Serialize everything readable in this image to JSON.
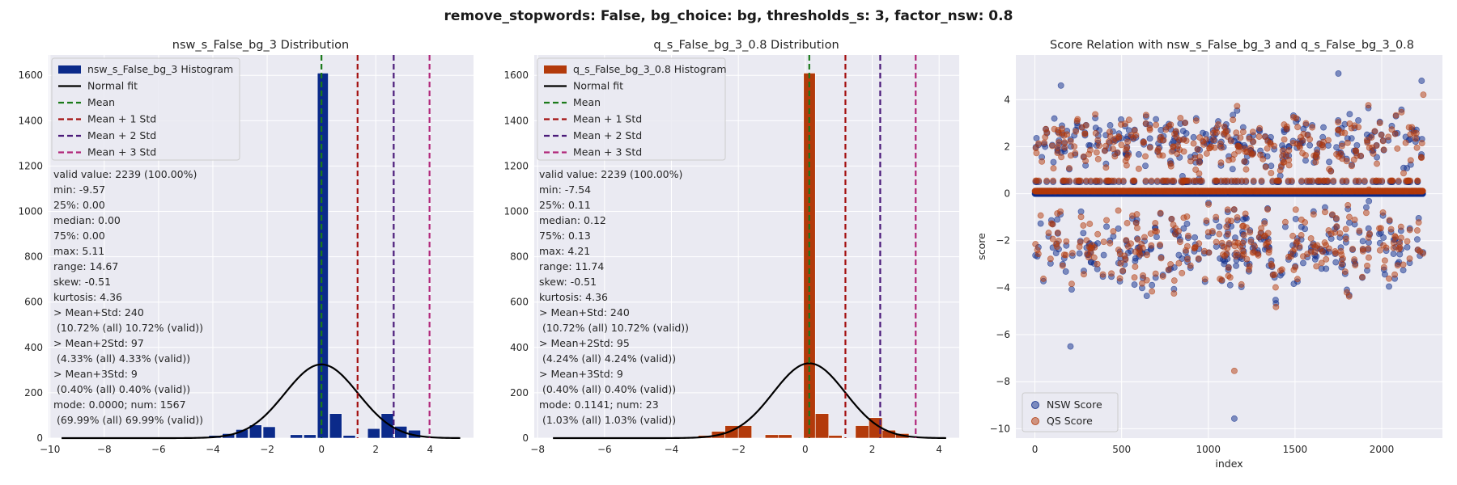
{
  "suptitle": "remove_stopwords: False, bg_choice: bg, thresholds_s: 3, factor_nsw: 0.8",
  "colors": {
    "nsw": "#0b2a8a",
    "qs": "#b33a0b",
    "mean": "#1a7a1a",
    "std1": "#a31010",
    "std2": "#4b1b7a",
    "std3": "#b0267a",
    "fit": "#000000",
    "panel_bg": "#eaeaf2",
    "grid": "#ffffff"
  },
  "legend_labels": {
    "normal_fit": "Normal fit",
    "mean": "Mean",
    "std1": "Mean + 1 Std",
    "std2": "Mean + 2 Std",
    "std3": "Mean + 3 Std"
  },
  "chart_data": [
    {
      "type": "bar",
      "title": "nsw_s_False_bg_3 Distribution",
      "histogram_label": "nsw_s_False_bg_3 Histogram",
      "color_key": "nsw",
      "xlim": [
        -10.05,
        5.6
      ],
      "ylim": [
        0,
        1690
      ],
      "xticks": [
        -10,
        -8,
        -6,
        -4,
        -2,
        0,
        2,
        4
      ],
      "yticks": [
        0,
        200,
        400,
        600,
        800,
        1000,
        1200,
        1400,
        1600
      ],
      "bins": [
        {
          "x0": -4.15,
          "x1": -3.7,
          "count": 12
        },
        {
          "x0": -3.65,
          "x1": -3.2,
          "count": 20
        },
        {
          "x0": -3.15,
          "x1": -2.7,
          "count": 38
        },
        {
          "x0": -2.65,
          "x1": -2.2,
          "count": 58
        },
        {
          "x0": -2.15,
          "x1": -1.7,
          "count": 50
        },
        {
          "x0": -1.15,
          "x1": -0.7,
          "count": 15
        },
        {
          "x0": -0.65,
          "x1": -0.2,
          "count": 15
        },
        {
          "x0": -0.15,
          "x1": 0.25,
          "count": 1610
        },
        {
          "x0": 0.3,
          "x1": 0.75,
          "count": 108
        },
        {
          "x0": 0.8,
          "x1": 1.25,
          "count": 12
        },
        {
          "x0": 1.7,
          "x1": 2.15,
          "count": 42
        },
        {
          "x0": 2.2,
          "x1": 2.65,
          "count": 108
        },
        {
          "x0": 2.7,
          "x1": 3.15,
          "count": 52
        },
        {
          "x0": 3.2,
          "x1": 3.65,
          "count": 35
        }
      ],
      "fit": {
        "mean": 0.0,
        "std": 1.35,
        "peak": 325,
        "x_start": -9.57,
        "x_end": 5.11
      },
      "vlines": {
        "mean": 0.0,
        "std1": 1.33,
        "std2": 2.66,
        "std3": 3.98
      },
      "stats": [
        "valid value: 2239 (100.00%)",
        "min: -9.57",
        "25%: 0.00",
        "median: 0.00",
        "75%: 0.00",
        "max: 5.11",
        "range: 14.67",
        "skew: -0.51",
        "kurtosis: 4.36",
        "> Mean+Std: 240",
        " (10.72% (all) 10.72% (valid))",
        "> Mean+2Std: 97",
        " (4.33% (all) 4.33% (valid))",
        "> Mean+3Std: 9",
        " (0.40% (all) 0.40% (valid))",
        "mode: 0.0000; num: 1567",
        " (69.99% (all) 69.99% (valid))"
      ]
    },
    {
      "type": "bar",
      "title": "q_s_False_bg_3_0.8 Distribution",
      "histogram_label": "q_s_False_bg_3_0.8 Histogram",
      "color_key": "qs",
      "xlim": [
        -8.1,
        4.6
      ],
      "ylim": [
        0,
        1690
      ],
      "xticks": [
        -8,
        -6,
        -4,
        -2,
        0,
        2,
        4
      ],
      "yticks": [
        0,
        200,
        400,
        600,
        800,
        1000,
        1200,
        1400,
        1600
      ],
      "bins": [
        {
          "x0": -3.2,
          "x1": -2.8,
          "count": 12
        },
        {
          "x0": -2.8,
          "x1": -2.4,
          "count": 30
        },
        {
          "x0": -2.4,
          "x1": -2.0,
          "count": 55
        },
        {
          "x0": -2.0,
          "x1": -1.6,
          "count": 55
        },
        {
          "x0": -1.2,
          "x1": -0.8,
          "count": 15
        },
        {
          "x0": -0.8,
          "x1": -0.4,
          "count": 15
        },
        {
          "x0": -0.05,
          "x1": 0.3,
          "count": 1610
        },
        {
          "x0": 0.3,
          "x1": 0.7,
          "count": 108
        },
        {
          "x0": 0.7,
          "x1": 1.1,
          "count": 12
        },
        {
          "x0": 1.5,
          "x1": 1.9,
          "count": 55
        },
        {
          "x0": 1.9,
          "x1": 2.3,
          "count": 90
        },
        {
          "x0": 2.3,
          "x1": 2.7,
          "count": 35
        },
        {
          "x0": 2.7,
          "x1": 3.1,
          "count": 20
        }
      ],
      "fit": {
        "mean": 0.12,
        "std": 1.08,
        "peak": 330,
        "x_start": -7.54,
        "x_end": 4.21
      },
      "vlines": {
        "mean": 0.12,
        "std1": 1.2,
        "std2": 2.24,
        "std3": 3.3
      },
      "stats": [
        "valid value: 2239 (100.00%)",
        "min: -7.54",
        "25%: 0.11",
        "median: 0.12",
        "75%: 0.13",
        "max: 4.21",
        "range: 11.74",
        "skew: -0.51",
        "kurtosis: 4.36",
        "> Mean+Std: 240",
        " (10.72% (all) 10.72% (valid))",
        "> Mean+2Std: 95",
        " (4.24% (all) 4.24% (valid))",
        "> Mean+3Std: 9",
        " (0.40% (all) 0.40% (valid))",
        "mode: 0.1141; num: 23",
        " (1.03% (all) 1.03% (valid))"
      ]
    },
    {
      "type": "scatter",
      "title": "Score Relation with nsw_s_False_bg_3 and q_s_False_bg_3_0.8",
      "xlabel": "index",
      "ylabel": "score",
      "xlim": [
        -110,
        2350
      ],
      "ylim": [
        -10.4,
        5.9
      ],
      "xticks": [
        0,
        500,
        1000,
        1500,
        2000
      ],
      "yticks": [
        -10,
        -8,
        -6,
        -4,
        -2,
        0,
        2,
        4
      ],
      "n_points": 2239,
      "legend_position": "lower-left",
      "series": [
        {
          "name": "NSW Score",
          "color_key": "nsw"
        },
        {
          "name": "QS Score",
          "color_key": "qs"
        }
      ],
      "notable_points": [
        {
          "series": "NSW Score",
          "x": 1150,
          "y": -9.57
        },
        {
          "series": "QS Score",
          "x": 1150,
          "y": -7.54
        },
        {
          "series": "NSW Score",
          "x": 205,
          "y": -6.5
        },
        {
          "series": "NSW Score",
          "x": 1750,
          "y": 5.11
        },
        {
          "series": "NSW Score",
          "x": 2230,
          "y": 4.8
        },
        {
          "series": "NSW Score",
          "x": 150,
          "y": 4.6
        },
        {
          "series": "QS Score",
          "x": 2240,
          "y": 4.21
        }
      ]
    }
  ]
}
